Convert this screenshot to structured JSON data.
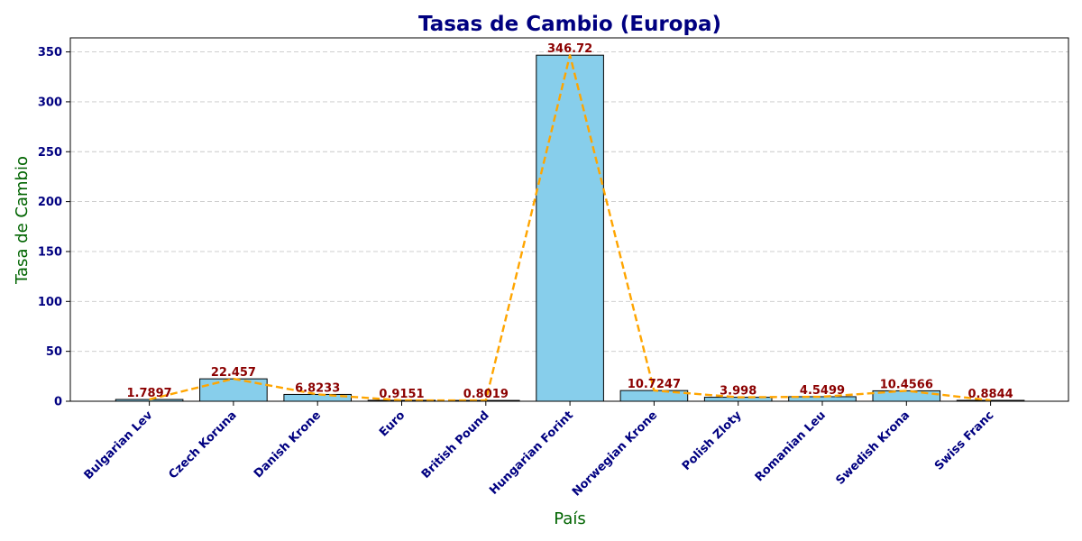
{
  "chart_data": {
    "type": "bar",
    "title": "Tasas de Cambio (Europa)",
    "xlabel": "País",
    "ylabel": "Tasa de Cambio",
    "categories": [
      "Bulgarian Lev",
      "Czech Koruna",
      "Danish Krone",
      "Euro",
      "British Pound",
      "Hungarian Forint",
      "Norwegian Krone",
      "Polish Zloty",
      "Romanian Leu",
      "Swedish Krona",
      "Swiss Franc"
    ],
    "values": [
      1.7897,
      22.457,
      6.8233,
      0.9151,
      0.8019,
      346.72,
      10.7247,
      3.998,
      4.5499,
      10.4566,
      0.8844
    ],
    "value_labels": [
      "1.7897",
      "22.457",
      "6.8233",
      "0.9151",
      "0.8019",
      "346.72",
      "10.7247",
      "3.998",
      "4.5499",
      "10.4566",
      "0.8844"
    ],
    "overlay_line": {
      "style": "dashed",
      "color": "#ffa500"
    },
    "ylim": [
      0,
      364.056
    ],
    "yticks": [
      0,
      50,
      100,
      150,
      200,
      250,
      300,
      350
    ],
    "grid": {
      "y": true,
      "x": false,
      "style": "dashed"
    },
    "colors": {
      "bar": "#87ceeb",
      "bar_edge": "#000000",
      "line": "#ffa500",
      "data_label": "#8b0000",
      "tick": "#000080",
      "axis_label": "#006400",
      "title": "#000080"
    }
  }
}
